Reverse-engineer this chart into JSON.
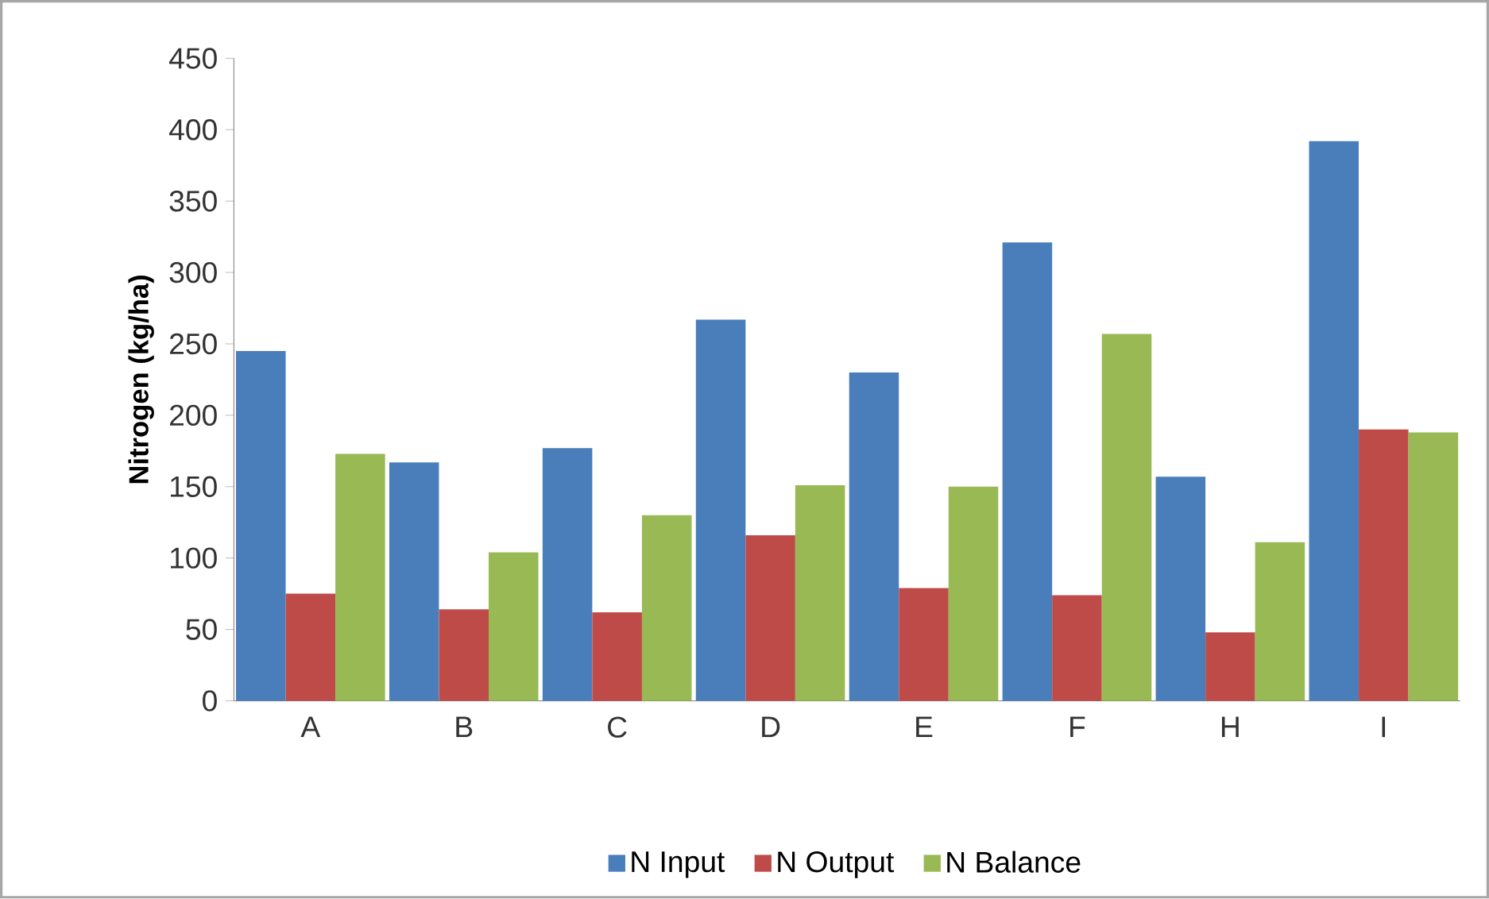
{
  "chart_data": {
    "type": "bar",
    "ylabel": "Nitrogen (kg/ha)",
    "categories": [
      "A",
      "B",
      "C",
      "D",
      "E",
      "F",
      "H",
      "I"
    ],
    "series": [
      {
        "name": "N Input",
        "color": "#4a7ebb",
        "values": [
          245,
          167,
          177,
          267,
          230,
          321,
          157,
          392
        ]
      },
      {
        "name": "N Output",
        "color": "#be4b48",
        "values": [
          75,
          64,
          62,
          116,
          79,
          74,
          48,
          190
        ]
      },
      {
        "name": "N Balance",
        "color": "#98b954",
        "values": [
          173,
          104,
          130,
          151,
          150,
          257,
          111,
          188
        ]
      }
    ],
    "ylim": [
      0,
      450
    ],
    "yticks": [
      0,
      50,
      100,
      150,
      200,
      250,
      300,
      350,
      400,
      450
    ],
    "legend": "bottom"
  }
}
